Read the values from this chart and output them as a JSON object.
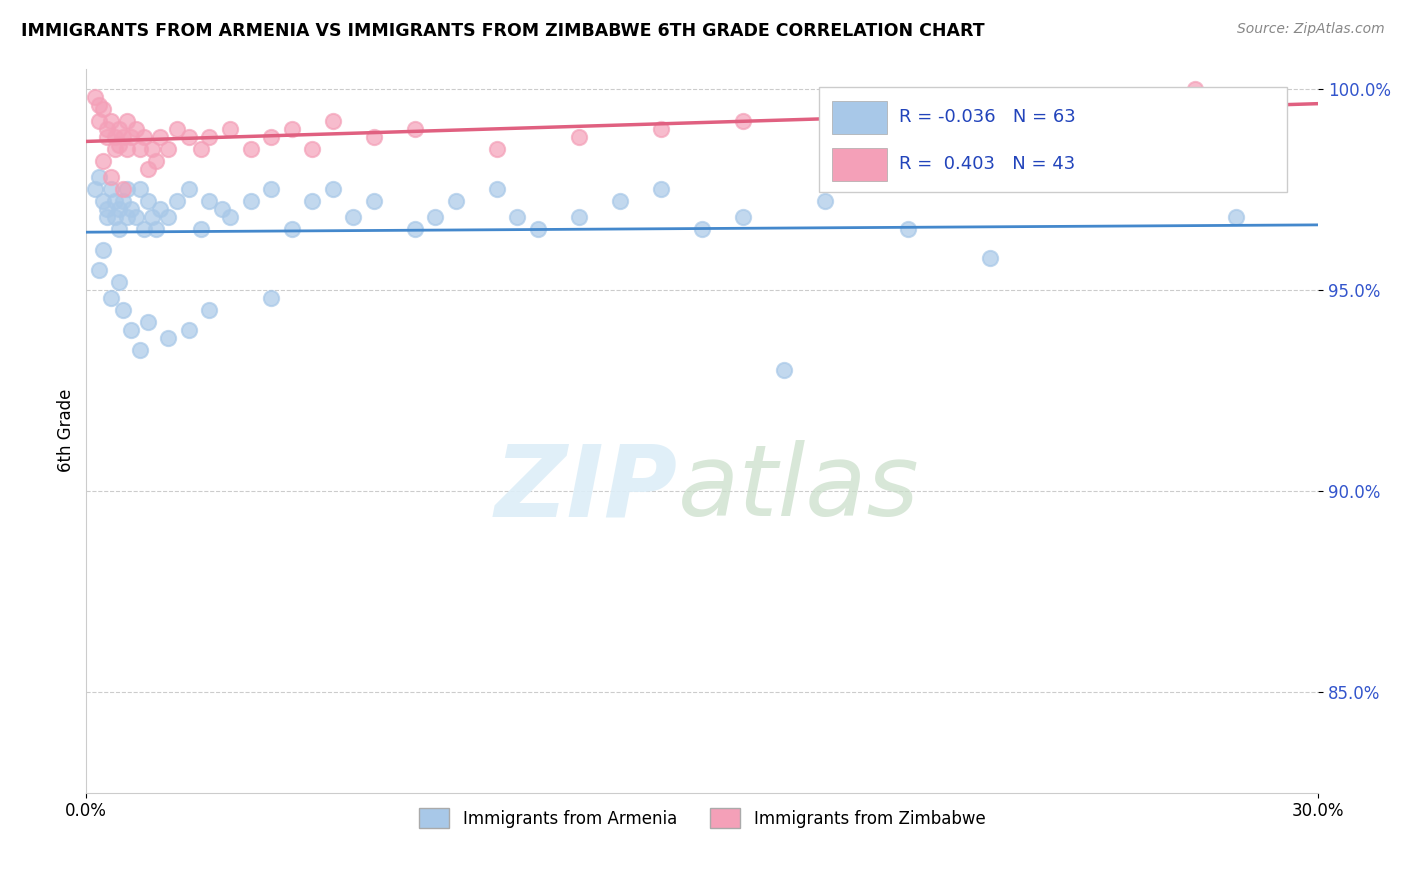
{
  "title": "IMMIGRANTS FROM ARMENIA VS IMMIGRANTS FROM ZIMBABWE 6TH GRADE CORRELATION CHART",
  "source": "Source: ZipAtlas.com",
  "ylabel": "6th Grade",
  "xlim": [
    0.0,
    0.3
  ],
  "ylim": [
    0.825,
    1.005
  ],
  "yticks": [
    0.85,
    0.9,
    0.95,
    1.0
  ],
  "ytick_labels": [
    "85.0%",
    "90.0%",
    "95.0%",
    "100.0%"
  ],
  "xticks": [
    0.0,
    0.3
  ],
  "xtick_labels": [
    "0.0%",
    "30.0%"
  ],
  "color_armenia": "#a8c8e8",
  "color_zimbabwe": "#f4a0b8",
  "line_color_armenia": "#4488cc",
  "line_color_zimbabwe": "#e06080",
  "background_color": "#ffffff",
  "armenia_x": [
    0.002,
    0.003,
    0.004,
    0.005,
    0.005,
    0.006,
    0.007,
    0.007,
    0.008,
    0.008,
    0.009,
    0.01,
    0.01,
    0.011,
    0.012,
    0.013,
    0.014,
    0.015,
    0.016,
    0.017,
    0.018,
    0.02,
    0.022,
    0.025,
    0.028,
    0.03,
    0.033,
    0.035,
    0.04,
    0.045,
    0.05,
    0.055,
    0.06,
    0.065,
    0.07,
    0.08,
    0.085,
    0.09,
    0.1,
    0.105,
    0.11,
    0.12,
    0.13,
    0.14,
    0.15,
    0.16,
    0.17,
    0.2,
    0.22,
    0.18,
    0.003,
    0.004,
    0.006,
    0.008,
    0.009,
    0.011,
    0.013,
    0.015,
    0.02,
    0.025,
    0.03,
    0.045,
    0.28
  ],
  "armenia_y": [
    0.975,
    0.978,
    0.972,
    0.97,
    0.968,
    0.975,
    0.972,
    0.968,
    0.97,
    0.965,
    0.972,
    0.968,
    0.975,
    0.97,
    0.968,
    0.975,
    0.965,
    0.972,
    0.968,
    0.965,
    0.97,
    0.968,
    0.972,
    0.975,
    0.965,
    0.972,
    0.97,
    0.968,
    0.972,
    0.975,
    0.965,
    0.972,
    0.975,
    0.968,
    0.972,
    0.965,
    0.968,
    0.972,
    0.975,
    0.968,
    0.965,
    0.968,
    0.972,
    0.975,
    0.965,
    0.968,
    0.93,
    0.965,
    0.958,
    0.972,
    0.955,
    0.96,
    0.948,
    0.952,
    0.945,
    0.94,
    0.935,
    0.942,
    0.938,
    0.94,
    0.945,
    0.948,
    0.968
  ],
  "zimbabwe_x": [
    0.002,
    0.003,
    0.003,
    0.004,
    0.005,
    0.005,
    0.006,
    0.007,
    0.007,
    0.008,
    0.008,
    0.009,
    0.01,
    0.01,
    0.011,
    0.012,
    0.013,
    0.014,
    0.015,
    0.016,
    0.017,
    0.018,
    0.02,
    0.022,
    0.025,
    0.028,
    0.03,
    0.035,
    0.04,
    0.045,
    0.05,
    0.055,
    0.06,
    0.07,
    0.08,
    0.1,
    0.12,
    0.14,
    0.16,
    0.27,
    0.004,
    0.006,
    0.009
  ],
  "zimbabwe_y": [
    0.998,
    0.996,
    0.992,
    0.995,
    0.99,
    0.988,
    0.992,
    0.988,
    0.985,
    0.99,
    0.986,
    0.988,
    0.992,
    0.985,
    0.988,
    0.99,
    0.985,
    0.988,
    0.98,
    0.985,
    0.982,
    0.988,
    0.985,
    0.99,
    0.988,
    0.985,
    0.988,
    0.99,
    0.985,
    0.988,
    0.99,
    0.985,
    0.992,
    0.988,
    0.99,
    0.985,
    0.988,
    0.99,
    0.992,
    1.0,
    0.982,
    0.978,
    0.975
  ]
}
